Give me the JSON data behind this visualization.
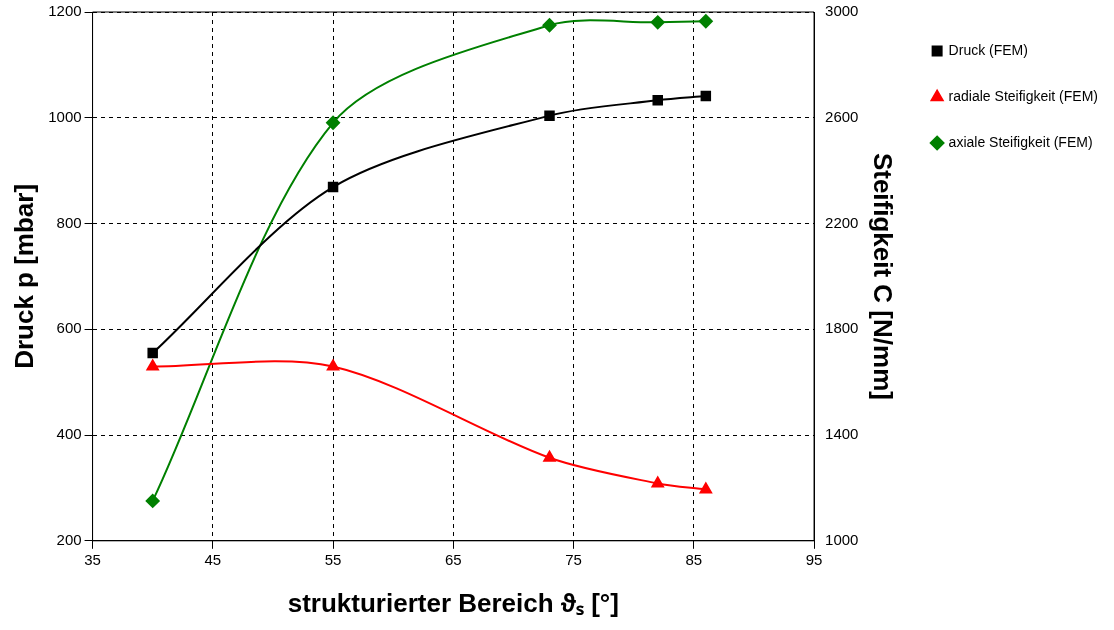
{
  "chart_data": {
    "type": "line",
    "xlabel": "strukturierter Bereich ϑₛ [°]",
    "ylabel": "Druck p [mbar]",
    "y2label": "Steifigkeit C [N/mm]",
    "x": [
      40,
      55,
      73,
      82,
      86
    ],
    "series": [
      {
        "name": "Druck (FEM)",
        "color": "#000000",
        "marker": "square",
        "values": [
          555,
          869,
          1004,
          1033,
          1041
        ]
      },
      {
        "name": "radiale Steifigkeit (FEM)",
        "color": "#ff0000",
        "marker": "triangle",
        "axis": "y2",
        "values": [
          1659,
          1659,
          1314,
          1217,
          1194
        ]
      },
      {
        "name": "axiale Steifigkeit (FEM)",
        "color": "#008000",
        "marker": "diamond",
        "axis": "y2",
        "values": [
          1151,
          2581,
          2950,
          2961,
          2965
        ]
      }
    ],
    "xlim": [
      35,
      95
    ],
    "xticks": [
      35,
      45,
      55,
      65,
      75,
      85,
      95
    ],
    "ylim": [
      200,
      1200
    ],
    "yticks": [
      200,
      400,
      600,
      800,
      1000,
      1200
    ],
    "y2lim": [
      1000,
      3000
    ],
    "y2ticks": [
      1000,
      1400,
      1800,
      2200,
      2600,
      3000
    ],
    "grid": true,
    "legend": "right",
    "line_style": "solid"
  }
}
